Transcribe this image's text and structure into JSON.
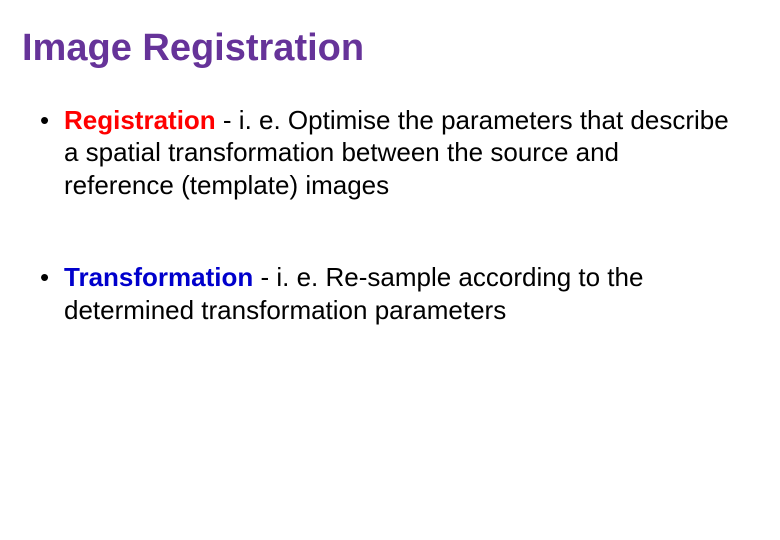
{
  "title_color": "#663399",
  "text_color": "#000000",
  "term_red_color": "#ff0000",
  "term_blue_color": "#0000cc",
  "background_color": "#ffffff",
  "title_fontsize": 38,
  "body_fontsize": 26,
  "slide": {
    "title": "Image Registration",
    "bullets": [
      {
        "term": "Registration",
        "term_style": "red",
        "rest": " - i. e. Optimise the parameters that describe a spatial transformation between the source and reference (template) images"
      },
      {
        "term": "Transformation",
        "term_style": "blue",
        "rest": " - i. e. Re-sample according to the determined transformation parameters"
      }
    ]
  }
}
